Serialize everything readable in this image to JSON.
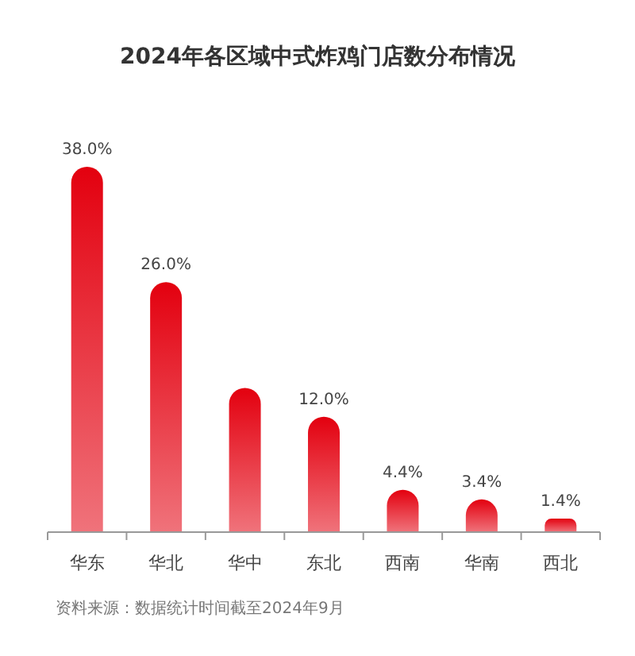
{
  "chart_data": {
    "type": "bar",
    "title": "2024年各区域中式炸鸡门店数分布情况",
    "categories": [
      "华东",
      "华北",
      "华中",
      "东北",
      "西南",
      "华南",
      "西北"
    ],
    "values": [
      38.0,
      26.0,
      15.0,
      12.0,
      4.4,
      3.4,
      1.4
    ],
    "value_labels": [
      "38.0%",
      "26.0%",
      null,
      "12.0%",
      "4.4%",
      "3.4%",
      "1.4%"
    ],
    "color": "#e3000f",
    "annotations": [
      "资料来源：数据统计时间截至2024年9月"
    ]
  }
}
